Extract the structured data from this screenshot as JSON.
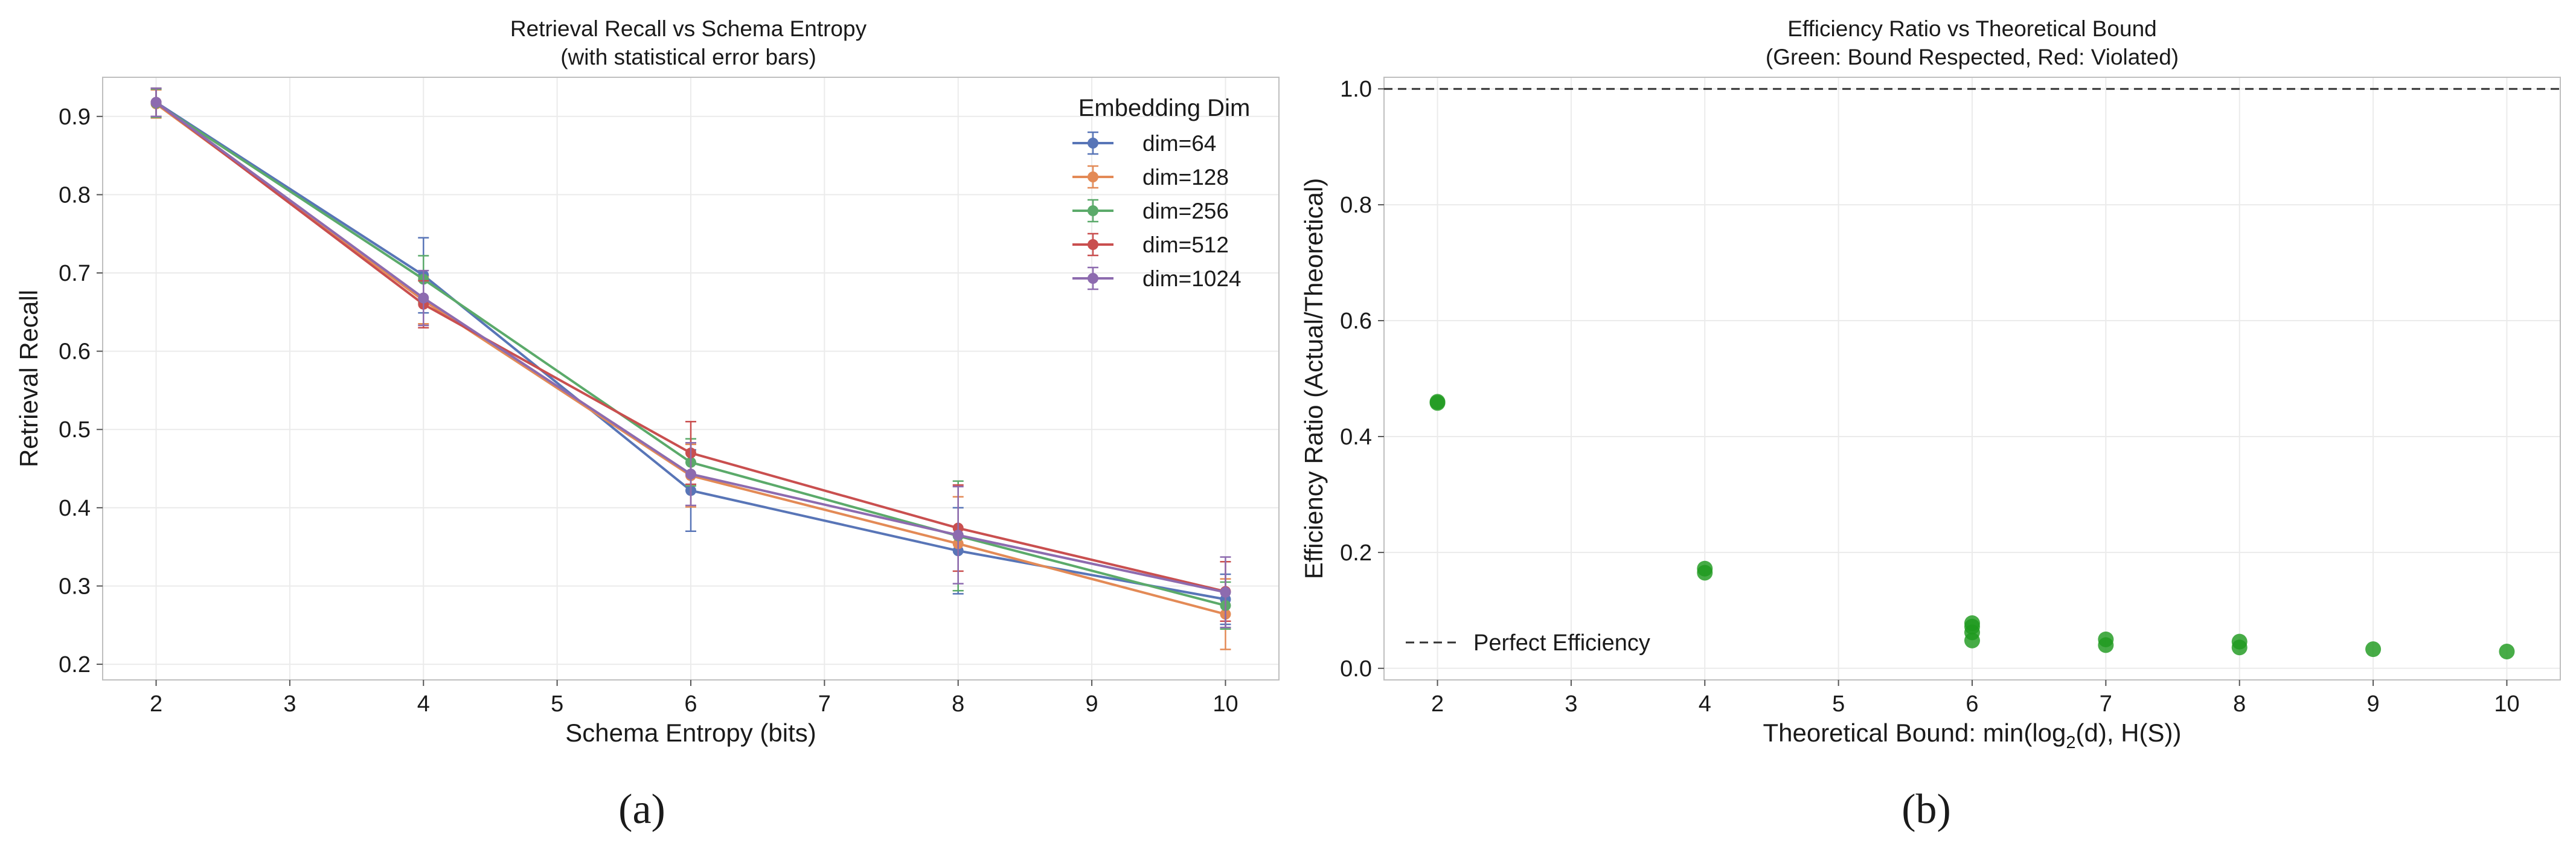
{
  "chart_data": [
    {
      "type": "line",
      "panel_label": "(a)",
      "title": "Retrieval Recall vs Schema Entropy",
      "subtitle": "(with statistical error bars)",
      "xlabel": "Schema Entropy (bits)",
      "ylabel": "Retrieval Recall",
      "xlim": [
        1.6,
        10.4
      ],
      "ylim": [
        0.18,
        0.95
      ],
      "xticks": [
        "2",
        "3",
        "4",
        "5",
        "6",
        "7",
        "8",
        "9",
        "10"
      ],
      "yticks": [
        "0.2",
        "0.3",
        "0.4",
        "0.5",
        "0.6",
        "0.7",
        "0.8",
        "0.9"
      ],
      "grid": true,
      "legend_title": "Embedding Dim",
      "legend_position": "top-right",
      "x": [
        2,
        4,
        6,
        8,
        10
      ],
      "series": [
        {
          "name": "dim=64",
          "color": "#5875B7",
          "values": [
            0.918,
            0.697,
            0.422,
            0.345,
            0.283
          ],
          "errors": [
            0.018,
            0.048,
            0.052,
            0.055,
            0.032
          ]
        },
        {
          "name": "dim=128",
          "color": "#E38A56",
          "values": [
            0.916,
            0.665,
            0.441,
            0.354,
            0.264
          ],
          "errors": [
            0.018,
            0.03,
            0.04,
            0.06,
            0.045
          ]
        },
        {
          "name": "dim=256",
          "color": "#5BAA6A",
          "values": [
            0.917,
            0.692,
            0.458,
            0.364,
            0.275
          ],
          "errors": [
            0.018,
            0.03,
            0.03,
            0.07,
            0.03
          ]
        },
        {
          "name": "dim=512",
          "color": "#C94F4F",
          "values": [
            0.918,
            0.66,
            0.47,
            0.374,
            0.293
          ],
          "errors": [
            0.018,
            0.03,
            0.04,
            0.055,
            0.038
          ]
        },
        {
          "name": "dim=1024",
          "color": "#8D6BAF",
          "values": [
            0.918,
            0.668,
            0.443,
            0.365,
            0.292
          ],
          "errors": [
            0.018,
            0.035,
            0.04,
            0.062,
            0.045
          ]
        }
      ]
    },
    {
      "type": "scatter",
      "panel_label": "(b)",
      "title": "Efficiency Ratio vs Theoretical Bound",
      "subtitle": "(Green: Bound Respected, Red: Violated)",
      "xlabel_prefix": "Theoretical Bound: min(log",
      "xlabel_sub": "2",
      "xlabel_suffix": "(d), H(S))",
      "ylabel": "Efficiency Ratio (Actual/Theoretical)",
      "xlim": [
        1.6,
        10.4
      ],
      "ylim": [
        -0.02,
        1.02
      ],
      "xticks": [
        "2",
        "3",
        "4",
        "5",
        "6",
        "7",
        "8",
        "9",
        "10"
      ],
      "yticks": [
        "0.0",
        "0.2",
        "0.4",
        "0.6",
        "0.8",
        "1.0"
      ],
      "grid": true,
      "reference_line": {
        "y": 1.0,
        "label": "Perfect Efficiency"
      },
      "legend_position": "bottom-left",
      "point_color": "#1f9a1f",
      "points": [
        {
          "x": 2,
          "y": 0.458
        },
        {
          "x": 2,
          "y": 0.46
        },
        {
          "x": 4,
          "y": 0.165
        },
        {
          "x": 4,
          "y": 0.172
        },
        {
          "x": 6,
          "y": 0.048
        },
        {
          "x": 6,
          "y": 0.062
        },
        {
          "x": 6,
          "y": 0.072
        },
        {
          "x": 6,
          "y": 0.078
        },
        {
          "x": 7,
          "y": 0.04
        },
        {
          "x": 7,
          "y": 0.05
        },
        {
          "x": 8,
          "y": 0.036
        },
        {
          "x": 8,
          "y": 0.046
        },
        {
          "x": 9,
          "y": 0.033
        },
        {
          "x": 10,
          "y": 0.029
        }
      ]
    }
  ]
}
